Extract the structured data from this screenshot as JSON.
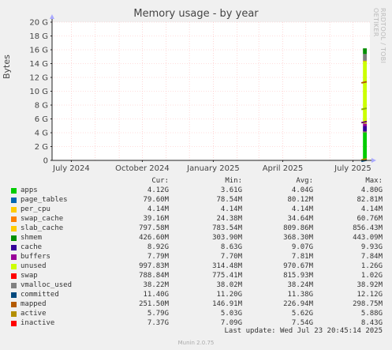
{
  "chart_data": {
    "type": "area",
    "title": "Memory usage - by year",
    "ylabel": "Bytes",
    "side_label": "RRDTOOL / TOBI OETIKER",
    "ylim": [
      0,
      20
    ],
    "y_unit": "G",
    "yticks": [
      0,
      2,
      4,
      6,
      8,
      10,
      12,
      14,
      16,
      18,
      20
    ],
    "ytick_labels": [
      "0",
      "2 G",
      "4 G",
      "6 G",
      "8 G",
      "10 G",
      "12 G",
      "14 G",
      "16 G",
      "18 G",
      "20 G"
    ],
    "xrange": [
      "2024-06-06",
      "2025-07-23"
    ],
    "xticks": [
      {
        "date": "2024-07-01",
        "label": "July 2024"
      },
      {
        "date": "2024-10-01",
        "label": "October 2024"
      },
      {
        "date": "2025-01-01",
        "label": "January 2025"
      },
      {
        "date": "2025-04-01",
        "label": "April 2025"
      },
      {
        "date": "2025-07-01",
        "label": "July 2025"
      }
    ],
    "data_start": "2025-07-14",
    "grid": true,
    "stack_order": [
      "apps",
      "page_tables",
      "per_cpu",
      "swap_cache",
      "slab_cache",
      "shmem",
      "cache",
      "buffers",
      "unused",
      "swap"
    ],
    "line_series": [
      "vmalloc_used",
      "committed",
      "mapped",
      "active",
      "inactive"
    ],
    "columns": [
      "Cur:",
      "Min:",
      "Avg:",
      "Max:"
    ],
    "series": [
      {
        "name": "apps",
        "color": "#00cc00",
        "cur": "4.12G",
        "min": "3.61G",
        "avg": "4.04G",
        "max": "4.80G",
        "value": 4.04
      },
      {
        "name": "page_tables",
        "color": "#0066b3",
        "cur": "79.60M",
        "min": "78.54M",
        "avg": "80.12M",
        "max": "82.81M",
        "value": 0.08
      },
      {
        "name": "per_cpu",
        "color": "#ff8000",
        "cur": "4.14M",
        "min": "4.14M",
        "avg": "4.14M",
        "max": "4.14M",
        "value": 0.004
      },
      {
        "name": "swap_cache",
        "color": "#ffcc00",
        "cur": "39.16M",
        "min": "24.38M",
        "avg": "34.64M",
        "max": "60.76M",
        "value": 0.035
      },
      {
        "name": "slab_cache",
        "color": "#330099",
        "cur": "797.58M",
        "min": "783.54M",
        "avg": "809.86M",
        "max": "856.43M",
        "value": 0.81
      },
      {
        "name": "shmem",
        "color": "#990099",
        "cur": "426.60M",
        "min": "303.90M",
        "avg": "368.30M",
        "max": "443.09M",
        "value": 0.37
      },
      {
        "name": "cache",
        "color": "#ccff00",
        "cur": "8.92G",
        "min": "8.63G",
        "avg": "9.07G",
        "max": "9.93G",
        "value": 9.07
      },
      {
        "name": "buffers",
        "color": "#ff0000",
        "cur": "7.79M",
        "min": "7.70M",
        "avg": "7.81M",
        "max": "7.84M",
        "value": 0.008
      },
      {
        "name": "unused",
        "color": "#808080",
        "cur": "997.83M",
        "min": "314.48M",
        "avg": "970.67M",
        "max": "1.26G",
        "value": 0.97
      },
      {
        "name": "swap",
        "color": "#008f00",
        "cur": "788.84M",
        "min": "775.41M",
        "avg": "815.93M",
        "max": "1.02G",
        "value": 0.82
      },
      {
        "name": "vmalloc_used",
        "color": "#00487d",
        "cur": "38.22M",
        "min": "38.02M",
        "avg": "38.24M",
        "max": "38.92M",
        "value": 0.038
      },
      {
        "name": "committed",
        "color": "#b35a00",
        "cur": "11.40G",
        "min": "11.20G",
        "avg": "11.38G",
        "max": "12.12G",
        "value": 11.38
      },
      {
        "name": "mapped",
        "color": "#b38f00",
        "cur": "251.50M",
        "min": "146.91M",
        "avg": "226.94M",
        "max": "298.75M",
        "value": 0.23
      },
      {
        "name": "active",
        "color": "#6b006b",
        "cur": "5.79G",
        "min": "5.03G",
        "avg": "5.62G",
        "max": "5.88G",
        "value": 5.62
      },
      {
        "name": "inactive",
        "color": "#8fb300",
        "cur": "7.37G",
        "min": "7.09G",
        "avg": "7.54G",
        "max": "8.43G",
        "value": 7.54
      }
    ],
    "legend_swatch_colors": [
      "#00cc00",
      "#0066b3",
      "#ffcc00",
      "#ff8000",
      "#ffcc00",
      "#008f00",
      "#330099",
      "#990099",
      "#ccff00",
      "#ff0000",
      "#808080",
      "#00487d",
      "#b35a00",
      "#b38f00",
      "#ff0000"
    ],
    "last_update": "Last update:  Wed Jul 23 20:45:14 2025",
    "footer": "Munin 2.0.75"
  }
}
